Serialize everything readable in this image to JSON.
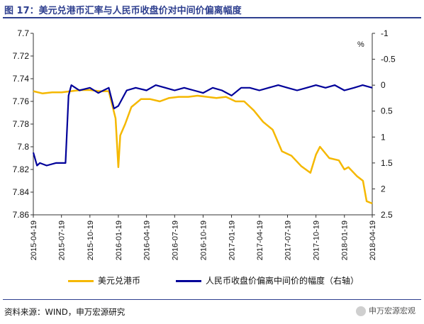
{
  "figure": {
    "title": "图 17：美元兑港币汇率与人民币收盘价对中间价偏离幅度",
    "source": "资料来源：WIND，申万宏源研究",
    "watermark": "申万宏源宏观"
  },
  "chart_data": {
    "type": "line",
    "x_ticks": [
      "2015-04-19",
      "2015-07-19",
      "2015-10-19",
      "2016-01-19",
      "2016-04-19",
      "2016-07-19",
      "2016-10-19",
      "2017-01-19",
      "2017-04-19",
      "2017-07-19",
      "2017-10-19",
      "2018-01-19",
      "2018-04-19"
    ],
    "left_axis": {
      "ticks": [
        "7.7",
        "7.72",
        "7.74",
        "7.76",
        "7.78",
        "7.8",
        "7.82",
        "7.84",
        "7.86"
      ],
      "range": [
        7.86,
        7.7
      ],
      "inverted": true
    },
    "right_axis": {
      "label": "%",
      "ticks": [
        "-1",
        "-0.5",
        "0",
        "0.5",
        "1",
        "1.5",
        "2",
        "2.5"
      ],
      "range": [
        2.5,
        -1
      ],
      "inverted": true
    },
    "series": [
      {
        "name": "美元兑港币",
        "axis": "left",
        "color": "#f5b800",
        "x": [
          "2015-04-19",
          "2015-05-19",
          "2015-06-19",
          "2015-07-19",
          "2015-08-19",
          "2015-09-19",
          "2015-10-19",
          "2015-11-19",
          "2015-12-19",
          "2016-01-10",
          "2016-01-19",
          "2016-01-25",
          "2016-02-10",
          "2016-03-01",
          "2016-04-01",
          "2016-05-01",
          "2016-06-01",
          "2016-07-01",
          "2016-08-01",
          "2016-09-01",
          "2016-10-01",
          "2016-11-01",
          "2016-12-01",
          "2017-01-01",
          "2017-02-01",
          "2017-03-01",
          "2017-04-01",
          "2017-05-01",
          "2017-06-01",
          "2017-07-01",
          "2017-08-01",
          "2017-09-01",
          "2017-10-01",
          "2017-10-19",
          "2017-11-01",
          "2017-12-01",
          "2018-01-01",
          "2018-01-19",
          "2018-02-01",
          "2018-03-01",
          "2018-03-20",
          "2018-04-01",
          "2018-04-19"
        ],
        "values": [
          7.751,
          7.753,
          7.752,
          7.752,
          7.751,
          7.75,
          7.75,
          7.751,
          7.751,
          7.775,
          7.818,
          7.79,
          7.78,
          7.765,
          7.758,
          7.758,
          7.76,
          7.757,
          7.756,
          7.756,
          7.755,
          7.756,
          7.757,
          7.756,
          7.76,
          7.76,
          7.768,
          7.778,
          7.785,
          7.804,
          7.808,
          7.817,
          7.823,
          7.807,
          7.8,
          7.81,
          7.812,
          7.82,
          7.818,
          7.826,
          7.83,
          7.848,
          7.85
        ]
      },
      {
        "name": "人民币收盘价偏离中间价的幅度（右轴）",
        "axis": "right",
        "color": "#000099",
        "x": [
          "2015-04-19",
          "2015-05-01",
          "2015-05-10",
          "2015-06-01",
          "2015-07-01",
          "2015-08-01",
          "2015-08-11",
          "2015-08-20",
          "2015-09-15",
          "2015-10-19",
          "2015-11-15",
          "2015-12-19",
          "2016-01-05",
          "2016-01-19",
          "2016-02-15",
          "2016-03-15",
          "2016-04-19",
          "2016-05-19",
          "2016-06-19",
          "2016-07-19",
          "2016-08-19",
          "2016-09-19",
          "2016-10-19",
          "2016-11-19",
          "2016-12-19",
          "2017-01-19",
          "2017-02-19",
          "2017-03-19",
          "2017-04-19",
          "2017-05-19",
          "2017-06-19",
          "2017-07-19",
          "2017-08-19",
          "2017-09-19",
          "2017-10-19",
          "2017-11-19",
          "2017-12-19",
          "2018-01-19",
          "2018-02-19",
          "2018-03-19",
          "2018-04-19"
        ],
        "values": [
          1.3,
          1.55,
          1.5,
          1.55,
          1.5,
          1.5,
          0.2,
          0.0,
          0.1,
          0.05,
          0.15,
          0.05,
          0.45,
          0.4,
          0.1,
          0.05,
          0.1,
          0.0,
          0.05,
          0.1,
          0.05,
          0.1,
          0.15,
          0.05,
          0.1,
          0.2,
          0.05,
          0.05,
          0.1,
          0.05,
          0.0,
          0.05,
          0.1,
          0.05,
          0.0,
          0.05,
          0.0,
          0.1,
          0.05,
          0.0,
          0.05
        ]
      }
    ],
    "grid": false,
    "legend": "bottom"
  }
}
